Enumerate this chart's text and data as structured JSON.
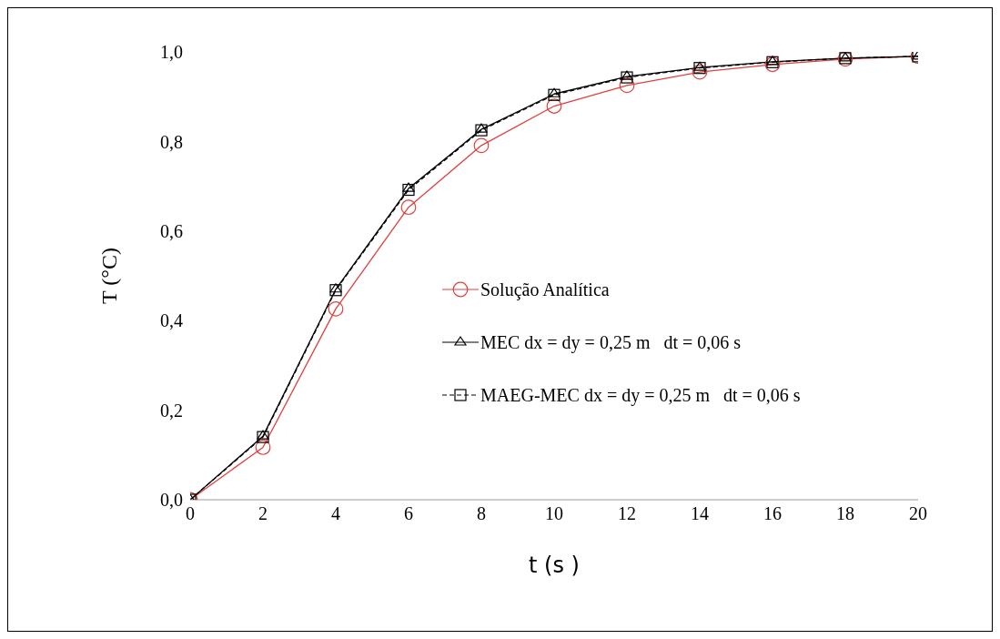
{
  "chart_data": {
    "type": "line",
    "xlabel": "t (s )",
    "ylabel": "T (°C)",
    "x": [
      0,
      2,
      4,
      6,
      8,
      10,
      12,
      14,
      16,
      18,
      20
    ],
    "series": [
      {
        "name": "Solução Analítica",
        "color": "#e0403c",
        "marker": "circle",
        "line_style": "solid",
        "values": [
          0,
          0.117,
          0.426,
          0.653,
          0.791,
          0.879,
          0.925,
          0.955,
          0.972,
          0.984,
          0.99
        ]
      },
      {
        "name": "MEC dx = dy = 0,25 m   dt = 0,06 s",
        "color": "#000000",
        "marker": "triangle",
        "line_style": "solid",
        "values": [
          0,
          0.142,
          0.47,
          0.695,
          0.827,
          0.906,
          0.945,
          0.965,
          0.978,
          0.986,
          0.99
        ]
      },
      {
        "name": "MAEG-MEC dx = dy = 0,25 m   dt = 0,06 s",
        "color": "#000000",
        "marker": "square",
        "line_style": "dashed",
        "values": [
          0,
          0.14,
          0.468,
          0.692,
          0.825,
          0.904,
          0.943,
          0.964,
          0.977,
          0.986,
          0.99
        ]
      }
    ],
    "xlim": [
      0,
      20
    ],
    "xticks": [
      0,
      2,
      4,
      6,
      8,
      10,
      12,
      14,
      16,
      18,
      20
    ],
    "ylim": [
      0,
      1
    ],
    "yticks": [
      {
        "value": 0,
        "label": "0,0"
      },
      {
        "value": 0.2,
        "label": "0,2"
      },
      {
        "value": 0.4,
        "label": "0,4"
      },
      {
        "value": 0.6,
        "label": "0,6"
      },
      {
        "value": 0.8,
        "label": "0,8"
      },
      {
        "value": 1,
        "label": "1,0"
      }
    ],
    "grid": false,
    "legend": "right"
  }
}
